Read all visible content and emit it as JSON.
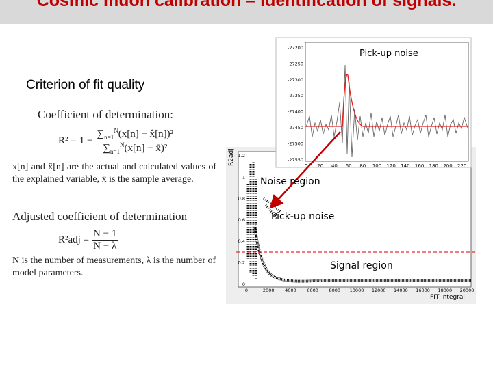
{
  "header": {
    "title": "Cosmic muon calibration – identification of signals."
  },
  "left": {
    "heading": "Criterion of fit quality",
    "coef_title": "Coefficient of determination:",
    "r2": {
      "lhs": "R² =",
      "num": "(x[n] − x̂[n])²",
      "den": "(x[n] − x̄)²",
      "sum": "∑",
      "sub": "n=1",
      "sup": "N",
      "minus": "1 −"
    },
    "explain": "x[n] and x̂[n] are the actual and calculated values of the explained variable, x̄ is the sample average.",
    "adj_title": "Adjusted coefficient of determination",
    "r2adj": {
      "lhs": "R²adj =",
      "num": "N − 1",
      "den": "N − λ"
    },
    "params": "N is the number of measurements, λ is the number of model parameters."
  },
  "waveform_plot": {
    "annotation": "Pick-up noise",
    "yticks": [
      "-27200",
      "-27250",
      "-27300",
      "-27350",
      "-27400",
      "-27450",
      "-27500",
      "-27550"
    ],
    "xticks": [
      "0",
      "20",
      "40",
      "60",
      "80",
      "100",
      "120",
      "140",
      "160",
      "180",
      "200",
      "220"
    ]
  },
  "scatter_plot": {
    "ylabel": "R2adj",
    "xlabel": "FIT integral",
    "yticks": [
      "1.2",
      "1",
      "0.8",
      "0.6",
      "0.4",
      "0.2",
      "0"
    ],
    "xticks": [
      "0",
      "2000",
      "4000",
      "6000",
      "8000",
      "10000",
      "12000",
      "14000",
      "16000",
      "18000",
      "20000"
    ],
    "noise_label": "Noise region",
    "pickup_label": "Pick-up noise",
    "signal_label": "Signal region"
  }
}
